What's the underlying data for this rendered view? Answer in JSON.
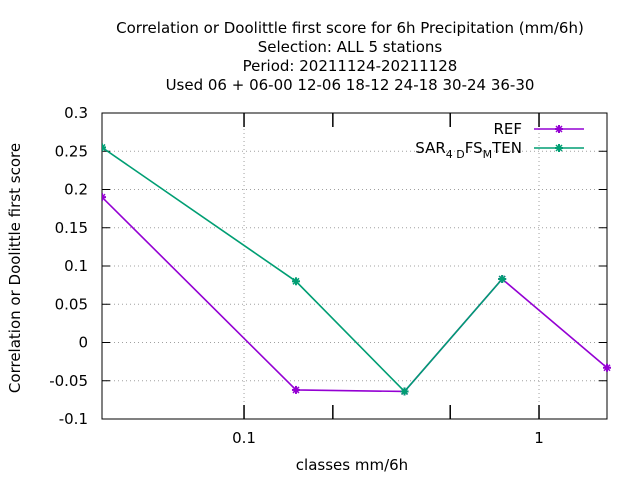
{
  "chart_data": {
    "type": "line",
    "title_lines": [
      "Correlation or Doolittle first score  for 6h Precipitation (mm/6h)",
      "Selection: ALL      5 stations",
      "Period: 20211124-20211128",
      "Used  06  + 06-00 12-06 18-12 24-18 30-24 36-30"
    ],
    "xlabel": "classes mm/6h",
    "ylabel": "Correlation or Doolittle first score",
    "x_scale": "log",
    "xlim": [
      0.033,
      1.7
    ],
    "ylim": [
      -0.1,
      0.3
    ],
    "x_ticks": [
      {
        "value": 0.1,
        "label": "0.1"
      },
      {
        "value": 1,
        "label": "1"
      }
    ],
    "x_minor_ticks": [
      0.2,
      0.5
    ],
    "y_ticks": [
      {
        "value": 0.3,
        "label": "0.3"
      },
      {
        "value": 0.25,
        "label": "0.25"
      },
      {
        "value": 0.2,
        "label": "0.2"
      },
      {
        "value": 0.15,
        "label": "0.15"
      },
      {
        "value": 0.1,
        "label": "0.1"
      },
      {
        "value": 0.05,
        "label": "0.05"
      },
      {
        "value": 0,
        "label": "0"
      },
      {
        "value": -0.05,
        "label": "-0.05"
      },
      {
        "value": -0.1,
        "label": "-0.1"
      }
    ],
    "grid": true,
    "legend_position": "top-right",
    "series": [
      {
        "name": "REF",
        "color": "#9400d3",
        "x": [
          0.033,
          0.15,
          0.35,
          0.75,
          1.7
        ],
        "y": [
          0.19,
          -0.062,
          -0.064,
          0.083,
          -0.033
        ]
      },
      {
        "name_parts": [
          {
            "text": "SAR",
            "sub": false
          },
          {
            "text": "4 D",
            "sub": true
          },
          {
            "text": "FS",
            "sub": false
          },
          {
            "text": "M",
            "sub": true
          },
          {
            "text": "TEN",
            "sub": false
          }
        ],
        "color": "#009e73",
        "x": [
          0.033,
          0.15,
          0.35,
          0.75
        ],
        "y": [
          0.255,
          0.08,
          -0.064,
          0.083
        ]
      }
    ]
  }
}
